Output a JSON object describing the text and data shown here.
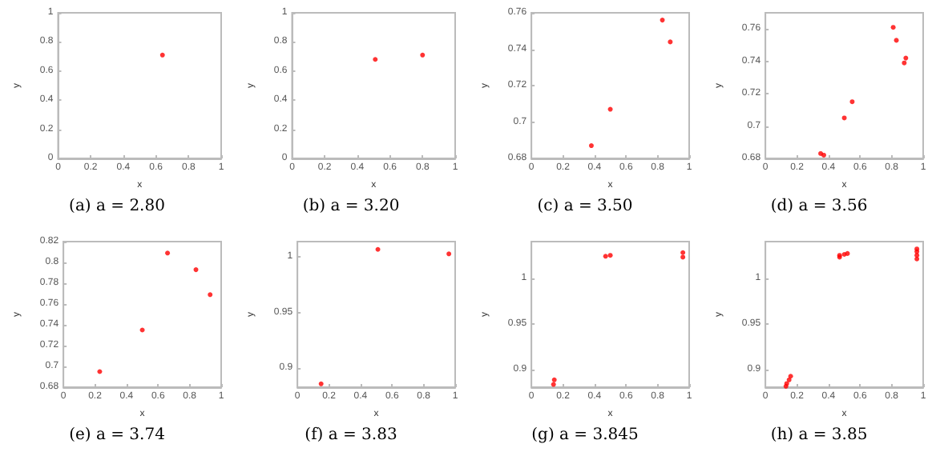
{
  "chart_data": [
    {
      "type": "scatter",
      "title": "(a) a = 2.80",
      "xlabel": "x",
      "ylabel": "y",
      "color": "#ff0000",
      "marker": "circle",
      "x": [
        0.64
      ],
      "values": [
        0.71
      ],
      "xlim": [
        0,
        1
      ],
      "ylim": [
        0,
        1
      ],
      "xticks": [
        0,
        0.2,
        0.4,
        0.6,
        0.8,
        1
      ],
      "yticks": [
        0,
        0.2,
        0.4,
        0.6,
        0.8,
        1
      ]
    },
    {
      "type": "scatter",
      "title": "(b) a = 3.20",
      "xlabel": "x",
      "ylabel": "y",
      "color": "#ff0000",
      "marker": "circle",
      "x": [
        0.51,
        0.8
      ],
      "values": [
        0.68,
        0.71
      ],
      "xlim": [
        0,
        1
      ],
      "ylim": [
        0,
        1
      ],
      "xticks": [
        0,
        0.2,
        0.4,
        0.6,
        0.8,
        1
      ],
      "yticks": [
        0,
        0.2,
        0.4,
        0.6,
        0.8,
        1
      ]
    },
    {
      "type": "scatter",
      "title": "(c) a = 3.50",
      "xlabel": "x",
      "ylabel": "y",
      "color": "#ff0000",
      "marker": "circle",
      "x": [
        0.38,
        0.5,
        0.83,
        0.88
      ],
      "values": [
        0.687,
        0.707,
        0.756,
        0.744
      ],
      "xlim": [
        0,
        1
      ],
      "ylim": [
        0.68,
        0.76
      ],
      "xticks": [
        0,
        0.2,
        0.4,
        0.6,
        0.8,
        1
      ],
      "yticks": [
        0.68,
        0.7,
        0.72,
        0.74,
        0.76
      ]
    },
    {
      "type": "scatter",
      "title": "(d) a = 3.56",
      "xlabel": "x",
      "ylabel": "y",
      "color": "#ff0000",
      "marker": "circle",
      "x": [
        0.35,
        0.37,
        0.5,
        0.55,
        0.81,
        0.83,
        0.88,
        0.89
      ],
      "values": [
        0.683,
        0.682,
        0.705,
        0.715,
        0.761,
        0.753,
        0.739,
        0.742
      ],
      "xlim": [
        0,
        1
      ],
      "ylim": [
        0.68,
        0.77
      ],
      "xticks": [
        0,
        0.2,
        0.4,
        0.6,
        0.8,
        1
      ],
      "yticks": [
        0.68,
        0.7,
        0.72,
        0.74,
        0.76
      ]
    },
    {
      "type": "scatter",
      "title": "(e) a = 3.74",
      "xlabel": "x",
      "ylabel": "y",
      "color": "#ff0000",
      "marker": "circle",
      "x": [
        0.23,
        0.5,
        0.66,
        0.84,
        0.93
      ],
      "values": [
        0.695,
        0.735,
        0.809,
        0.793,
        0.769
      ],
      "xlim": [
        0,
        1
      ],
      "ylim": [
        0.68,
        0.82
      ],
      "xticks": [
        0,
        0.2,
        0.4,
        0.6,
        0.8,
        1
      ],
      "yticks": [
        0.68,
        0.7,
        0.72,
        0.74,
        0.76,
        0.78,
        0.8,
        0.82
      ]
    },
    {
      "type": "scatter",
      "title": "(f) a = 3.83",
      "xlabel": "x",
      "ylabel": "y",
      "color": "#ff0000",
      "marker": "circle",
      "x": [
        0.15,
        0.51,
        0.96
      ],
      "values": [
        0.886,
        1.007,
        1.003
      ],
      "xlim": [
        0,
        1
      ],
      "ylim": [
        0.883,
        1.014
      ],
      "xticks": [
        0,
        0.2,
        0.4,
        0.6,
        0.8,
        1
      ],
      "yticks": [
        0.9,
        0.95,
        1
      ]
    },
    {
      "type": "scatter",
      "title": "(g) a = 3.845",
      "xlabel": "x",
      "ylabel": "y",
      "color": "#ff0000",
      "marker": "circle",
      "x": [
        0.14,
        0.145,
        0.47,
        0.5,
        0.96,
        0.96
      ],
      "values": [
        0.884,
        0.889,
        1.024,
        1.025,
        1.028,
        1.023
      ],
      "xlim": [
        0,
        1
      ],
      "ylim": [
        0.881,
        1.04
      ],
      "xticks": [
        0,
        0.2,
        0.4,
        0.6,
        0.8,
        1
      ],
      "yticks": [
        0.9,
        0.95,
        1
      ]
    },
    {
      "type": "scatter",
      "title": "(h) a = 3.85",
      "xlabel": "x",
      "ylabel": "y",
      "color": "#ff0000",
      "marker": "circle",
      "x": [
        0.13,
        0.135,
        0.15,
        0.16,
        0.47,
        0.47,
        0.5,
        0.52,
        0.96,
        0.96,
        0.96,
        0.96
      ],
      "values": [
        0.882,
        0.885,
        0.889,
        0.893,
        1.025,
        1.023,
        1.026,
        1.027,
        1.032,
        1.029,
        1.025,
        1.021
      ],
      "xlim": [
        0,
        1
      ],
      "ylim": [
        0.881,
        1.04
      ],
      "xticks": [
        0,
        0.2,
        0.4,
        0.6,
        0.8,
        1
      ],
      "yticks": [
        0.9,
        0.95,
        1
      ]
    }
  ]
}
